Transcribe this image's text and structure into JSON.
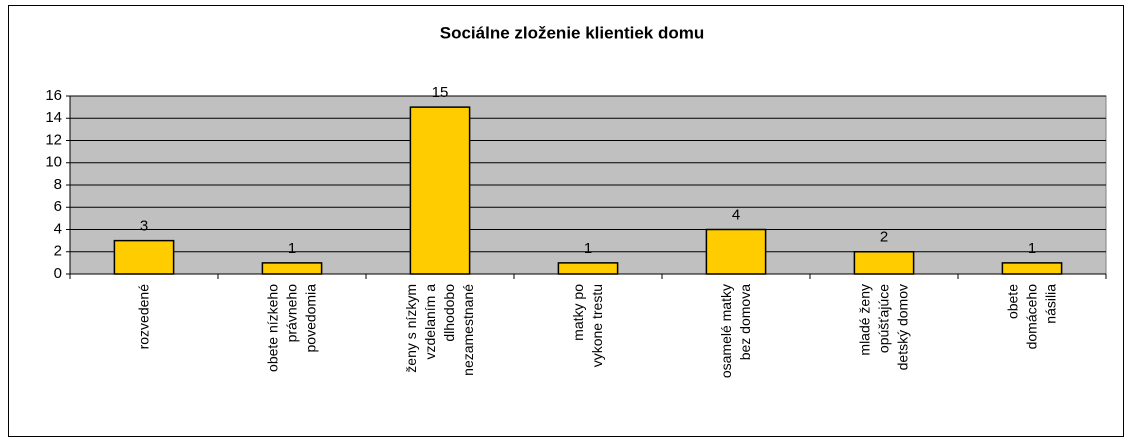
{
  "chart_data": {
    "type": "bar",
    "title": "Sociálne zloženie klientiek domu",
    "categories": [
      "rozvedené",
      "obete nízkeho\nprávneho\npovedomia",
      "ženy s nízkym\nvzdelaním a\ndlhodobo\nnezamestnané",
      "matky po\nvykone trestu",
      "osamelé matky\nbez domova",
      "mladé ženy\nopúšťajúce\ndetský domov",
      "obete\ndomáceho\nnásilia"
    ],
    "values": [
      3,
      1,
      15,
      1,
      4,
      2,
      1
    ],
    "color": "#ffcc00",
    "ylim": [
      0,
      16
    ],
    "yticks": [
      0,
      2,
      4,
      6,
      8,
      10,
      12,
      14,
      16
    ],
    "grid": true
  }
}
